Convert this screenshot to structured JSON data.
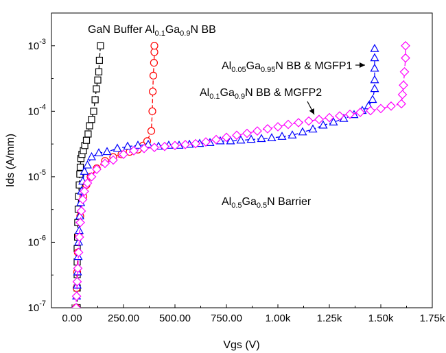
{
  "chart_data": {
    "type": "scatter",
    "xlabel": "Vgs (V)",
    "ylabel": "Ids (A/mm)",
    "xlim": [
      -100,
      1750
    ],
    "ylim_log10": [
      -7,
      -2.5
    ],
    "x_scale": "linear",
    "y_scale": "log",
    "grid": false,
    "x_ticks": [
      {
        "value": 0,
        "label": "0.00"
      },
      {
        "value": 250,
        "label": "250.00"
      },
      {
        "value": 500,
        "label": "500.00"
      },
      {
        "value": 750,
        "label": "750.00"
      },
      {
        "value": 1000,
        "label": "1.00k"
      },
      {
        "value": 1250,
        "label": "1.25k"
      },
      {
        "value": 1500,
        "label": "1.50k"
      },
      {
        "value": 1750,
        "label": "1.75k"
      }
    ],
    "y_ticks": [
      {
        "exp": -7,
        "base": "10",
        "sup": "-7"
      },
      {
        "exp": -6,
        "base": "10",
        "sup": "-6"
      },
      {
        "exp": -5,
        "base": "10",
        "sup": "-5"
      },
      {
        "exp": -4,
        "base": "10",
        "sup": "-4"
      },
      {
        "exp": -3,
        "base": "10",
        "sup": "-3"
      }
    ],
    "series": [
      {
        "marker": "square",
        "color": "#000000",
        "line_color": "#000000",
        "points": [
          [
            25,
            1e-07
          ],
          [
            25,
            2e-07
          ],
          [
            25,
            3.2e-07
          ],
          [
            25,
            5e-07
          ],
          [
            25,
            8e-07
          ],
          [
            27,
            1.2e-06
          ],
          [
            28,
            2e-06
          ],
          [
            30,
            3.2e-06
          ],
          [
            32,
            5e-06
          ],
          [
            35,
            7.5e-06
          ],
          [
            38,
            1.1e-05
          ],
          [
            40,
            1.4e-05
          ],
          [
            43,
            1.9e-05
          ],
          [
            48,
            2.2e-05
          ],
          [
            55,
            2.5e-05
          ],
          [
            62,
            3e-05
          ],
          [
            70,
            3.6e-05
          ],
          [
            78,
            4.5e-05
          ],
          [
            85,
            6e-05
          ],
          [
            95,
            7.5e-05
          ],
          [
            105,
            0.0001
          ],
          [
            112,
            0.00015
          ],
          [
            118,
            0.00022
          ],
          [
            125,
            0.0003
          ],
          [
            130,
            0.0004
          ],
          [
            133,
            0.0006
          ],
          [
            138,
            0.001
          ]
        ]
      },
      {
        "marker": "circle",
        "color": "#ff0000",
        "line_color": "#ff0000",
        "points": [
          [
            20,
            1e-07
          ],
          [
            22,
            2e-07
          ],
          [
            25,
            3.5e-07
          ],
          [
            28,
            7e-07
          ],
          [
            32,
            1.3e-06
          ],
          [
            40,
            2.5e-06
          ],
          [
            55,
            5e-06
          ],
          [
            70,
            7.5e-06
          ],
          [
            90,
            1e-05
          ],
          [
            120,
            1.35e-05
          ],
          [
            160,
            1.75e-05
          ],
          [
            200,
            2e-05
          ],
          [
            240,
            2.2e-05
          ],
          [
            280,
            2.4e-05
          ],
          [
            320,
            2.6e-05
          ],
          [
            345,
            3e-05
          ],
          [
            365,
            3.5e-05
          ],
          [
            385,
            5e-05
          ],
          [
            390,
            0.0001
          ],
          [
            392,
            0.0002
          ],
          [
            395,
            0.00035
          ],
          [
            398,
            0.00055
          ],
          [
            400,
            0.0008
          ],
          [
            400,
            0.001
          ]
        ]
      },
      {
        "marker": "triangle",
        "color": "#0000ff",
        "line_color": "#0000ff",
        "points": [
          [
            20,
            1e-07
          ],
          [
            22,
            1.5e-07
          ],
          [
            25,
            2.2e-07
          ],
          [
            27,
            3.5e-07
          ],
          [
            30,
            6e-07
          ],
          [
            32,
            1e-06
          ],
          [
            35,
            1.5e-06
          ],
          [
            38,
            2.5e-06
          ],
          [
            42,
            4e-06
          ],
          [
            46,
            6e-06
          ],
          [
            52,
            8.5e-06
          ],
          [
            60,
            1.2e-05
          ],
          [
            75,
            1.5e-05
          ],
          [
            95,
            2e-05
          ],
          [
            130,
            2.3e-05
          ],
          [
            170,
            2.4e-05
          ],
          [
            220,
            2.7e-05
          ],
          [
            270,
            2.9e-05
          ],
          [
            320,
            3e-05
          ],
          [
            370,
            3.1e-05
          ],
          [
            420,
            2.9e-05
          ],
          [
            470,
            3e-05
          ],
          [
            520,
            3e-05
          ],
          [
            570,
            3.1e-05
          ],
          [
            620,
            3.2e-05
          ],
          [
            670,
            3.3e-05
          ],
          [
            720,
            3.5e-05
          ],
          [
            770,
            3.5e-05
          ],
          [
            820,
            3.6e-05
          ],
          [
            870,
            3.7e-05
          ],
          [
            920,
            3.8e-05
          ],
          [
            970,
            3.9e-05
          ],
          [
            1020,
            4.1e-05
          ],
          [
            1070,
            4.3e-05
          ],
          [
            1120,
            4.8e-05
          ],
          [
            1170,
            5.3e-05
          ],
          [
            1220,
            6.1e-05
          ],
          [
            1270,
            6.8e-05
          ],
          [
            1320,
            7.7e-05
          ],
          [
            1370,
            8.8e-05
          ],
          [
            1410,
            0.000102
          ],
          [
            1440,
            0.00012
          ],
          [
            1460,
            0.00015
          ],
          [
            1470,
            0.00022
          ],
          [
            1470,
            0.0003
          ],
          [
            1470,
            0.00045
          ],
          [
            1470,
            0.00065
          ],
          [
            1470,
            0.0009
          ]
        ]
      },
      {
        "marker": "diamond",
        "color": "#ff00ff",
        "line_color": "#ff00ff",
        "points": [
          [
            20,
            1e-07
          ],
          [
            22,
            1.5e-07
          ],
          [
            25,
            2.5e-07
          ],
          [
            28,
            4e-07
          ],
          [
            32,
            7e-07
          ],
          [
            36,
            1.2e-06
          ],
          [
            40,
            2e-06
          ],
          [
            45,
            3e-06
          ],
          [
            52,
            4.5e-06
          ],
          [
            60,
            6e-06
          ],
          [
            75,
            8e-06
          ],
          [
            95,
            1e-05
          ],
          [
            120,
            1.3e-05
          ],
          [
            160,
            1.6e-05
          ],
          [
            200,
            1.8e-05
          ],
          [
            250,
            2.2e-05
          ],
          [
            300,
            2.5e-05
          ],
          [
            350,
            2.7e-05
          ],
          [
            400,
            2.8e-05
          ],
          [
            450,
            2.9e-05
          ],
          [
            500,
            3e-05
          ],
          [
            550,
            3.1e-05
          ],
          [
            600,
            3.2e-05
          ],
          [
            650,
            3.4e-05
          ],
          [
            700,
            3.7e-05
          ],
          [
            750,
            4e-05
          ],
          [
            800,
            4.3e-05
          ],
          [
            850,
            4.6e-05
          ],
          [
            900,
            5e-05
          ],
          [
            950,
            5.4e-05
          ],
          [
            1000,
            5.8e-05
          ],
          [
            1050,
            6.3e-05
          ],
          [
            1100,
            6.7e-05
          ],
          [
            1150,
            7.1e-05
          ],
          [
            1200,
            7.5e-05
          ],
          [
            1250,
            8e-05
          ],
          [
            1300,
            8.5e-05
          ],
          [
            1350,
            9e-05
          ],
          [
            1400,
            9.6e-05
          ],
          [
            1450,
            0.000102
          ],
          [
            1500,
            0.00011
          ],
          [
            1550,
            0.00012
          ],
          [
            1600,
            0.00013
          ],
          [
            1605,
            0.00018
          ],
          [
            1610,
            0.00025
          ],
          [
            1615,
            0.0004
          ],
          [
            1620,
            0.00065
          ],
          [
            1620,
            0.001
          ]
        ]
      }
    ],
    "annotations": [
      {
        "kind": "series-label",
        "segments": [
          {
            "t": "GaN Buffer Al"
          },
          {
            "t": "0.1",
            "sub": true
          },
          {
            "t": "Ga"
          },
          {
            "t": "0.9",
            "sub": true
          },
          {
            "t": "N BB"
          }
        ]
      },
      {
        "kind": "series-label",
        "segments": [
          {
            "t": "Al"
          },
          {
            "t": "0.05",
            "sub": true
          },
          {
            "t": "Ga"
          },
          {
            "t": "0.95",
            "sub": true
          },
          {
            "t": "N BB & MGFP1"
          }
        ]
      },
      {
        "kind": "series-label",
        "segments": [
          {
            "t": "Al"
          },
          {
            "t": "0.1",
            "sub": true
          },
          {
            "t": "Ga"
          },
          {
            "t": "0.9",
            "sub": true
          },
          {
            "t": "N BB & MGFP2"
          }
        ]
      },
      {
        "kind": "label",
        "segments": [
          {
            "t": "Al"
          },
          {
            "t": "0.5",
            "sub": true
          },
          {
            "t": "Ga"
          },
          {
            "t": "0.5",
            "sub": true
          },
          {
            "t": "N Barrier"
          }
        ]
      }
    ]
  }
}
